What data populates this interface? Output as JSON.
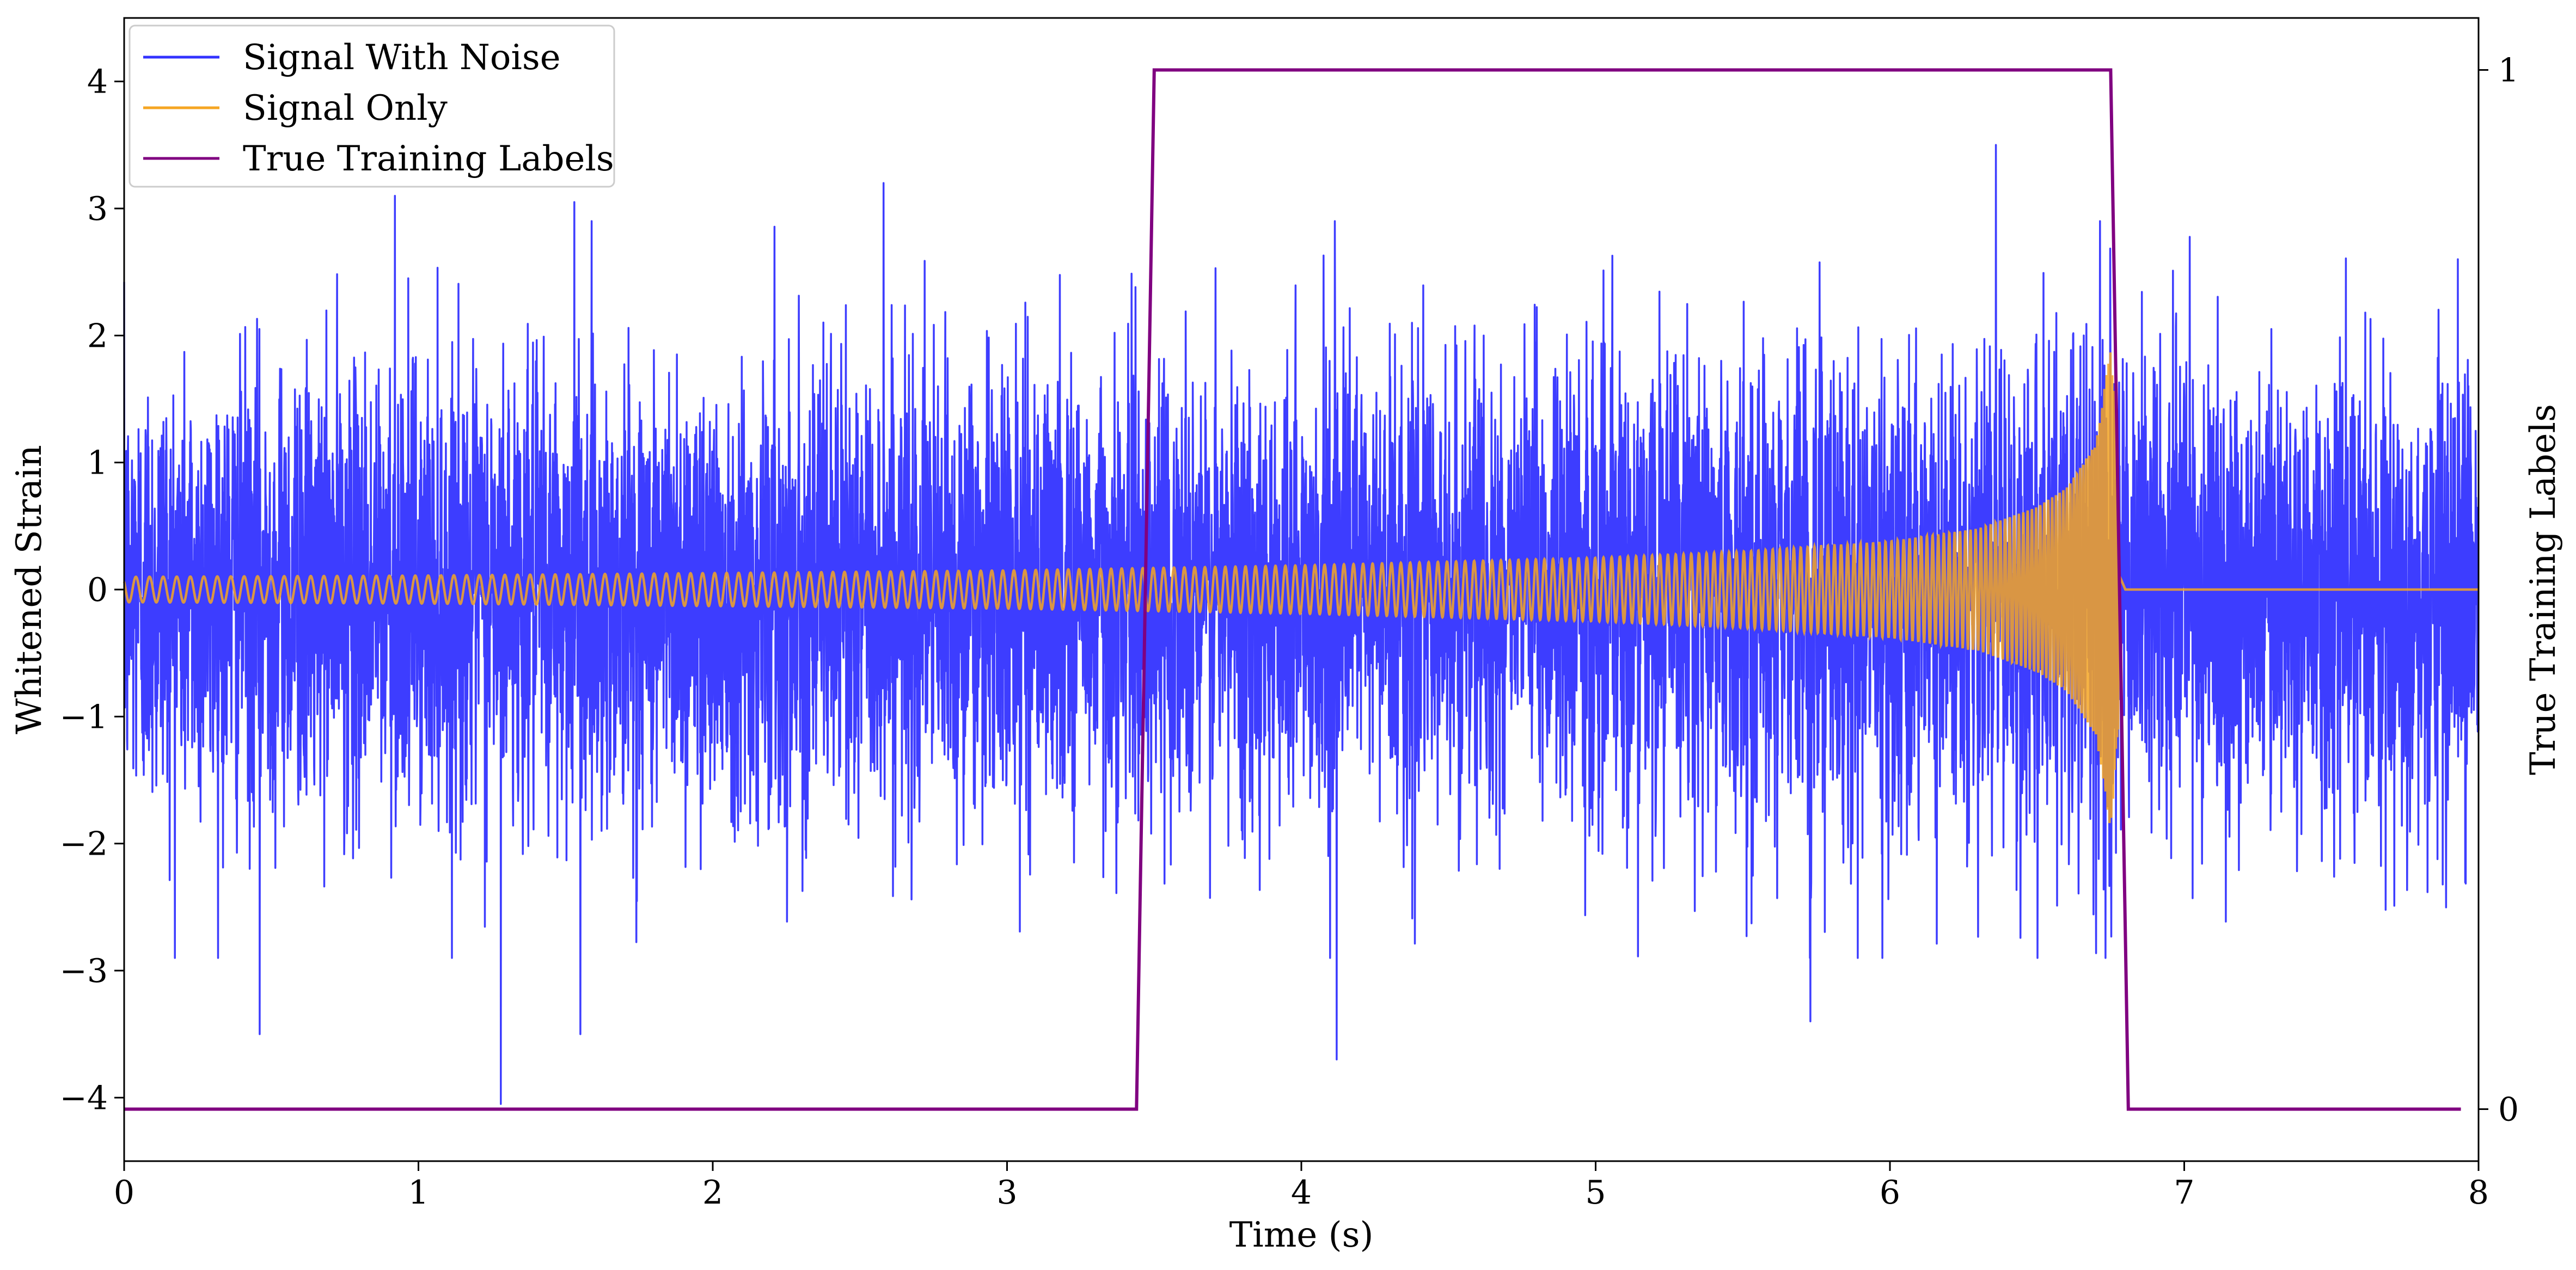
{
  "chart_data": {
    "type": "line",
    "title": "",
    "xlabel": "Time (s)",
    "ylabel": "Whitened Strain",
    "y2label": "True Training Labels",
    "xlim": [
      0,
      8
    ],
    "ylim": [
      -4.5,
      4.5
    ],
    "y2lim": [
      -0.05,
      1.05
    ],
    "x_ticks": [
      0,
      1,
      2,
      3,
      4,
      5,
      6,
      7,
      8
    ],
    "y_ticks": [
      -4,
      -3,
      -2,
      -1,
      0,
      1,
      2,
      3,
      4
    ],
    "y2_ticks": [
      0,
      1
    ],
    "grid": false,
    "legend_position": "upper-left",
    "legend": [
      "Signal With Noise",
      "Signal Only",
      "True Training Labels"
    ],
    "series": [
      {
        "name": "Signal With Noise",
        "color": "#3333ff",
        "axis": "left",
        "description": "dense noisy strain, mostly within ±2",
        "sample_peaks": [
          {
            "x": 0.46,
            "y": -3.5
          },
          {
            "x": 0.92,
            "y": 3.1
          },
          {
            "x": 1.28,
            "y": -4.05
          },
          {
            "x": 1.53,
            "y": 3.05
          },
          {
            "x": 1.55,
            "y": -3.5
          },
          {
            "x": 2.58,
            "y": 3.2
          },
          {
            "x": 4.12,
            "y": -3.7
          },
          {
            "x": 5.73,
            "y": -3.4
          },
          {
            "x": 6.36,
            "y": 3.5
          },
          {
            "x": 7.93,
            "y": 2.6
          }
        ]
      },
      {
        "name": "Signal Only",
        "color": "#f5a623",
        "axis": "left",
        "description": "chirp, amplitude ~0.1 rising to ~1.9 at merger (~6.75 s), then 0",
        "envelope": {
          "x": [
            0,
            1,
            2,
            3,
            3.5,
            4,
            5,
            5.5,
            6,
            6.3,
            6.5,
            6.6,
            6.7,
            6.75,
            6.78,
            6.8,
            8
          ],
          "amplitude": [
            0.1,
            0.11,
            0.13,
            0.15,
            0.17,
            0.19,
            0.25,
            0.3,
            0.38,
            0.48,
            0.65,
            0.8,
            1.15,
            1.9,
            1.0,
            0.0,
            0.0
          ]
        }
      },
      {
        "name": "True Training Labels",
        "color": "#800080",
        "axis": "right",
        "x": [
          0,
          3.44,
          3.5,
          6.75,
          6.81,
          7.94
        ],
        "values": [
          0,
          0,
          1,
          1,
          0,
          0
        ]
      }
    ]
  }
}
